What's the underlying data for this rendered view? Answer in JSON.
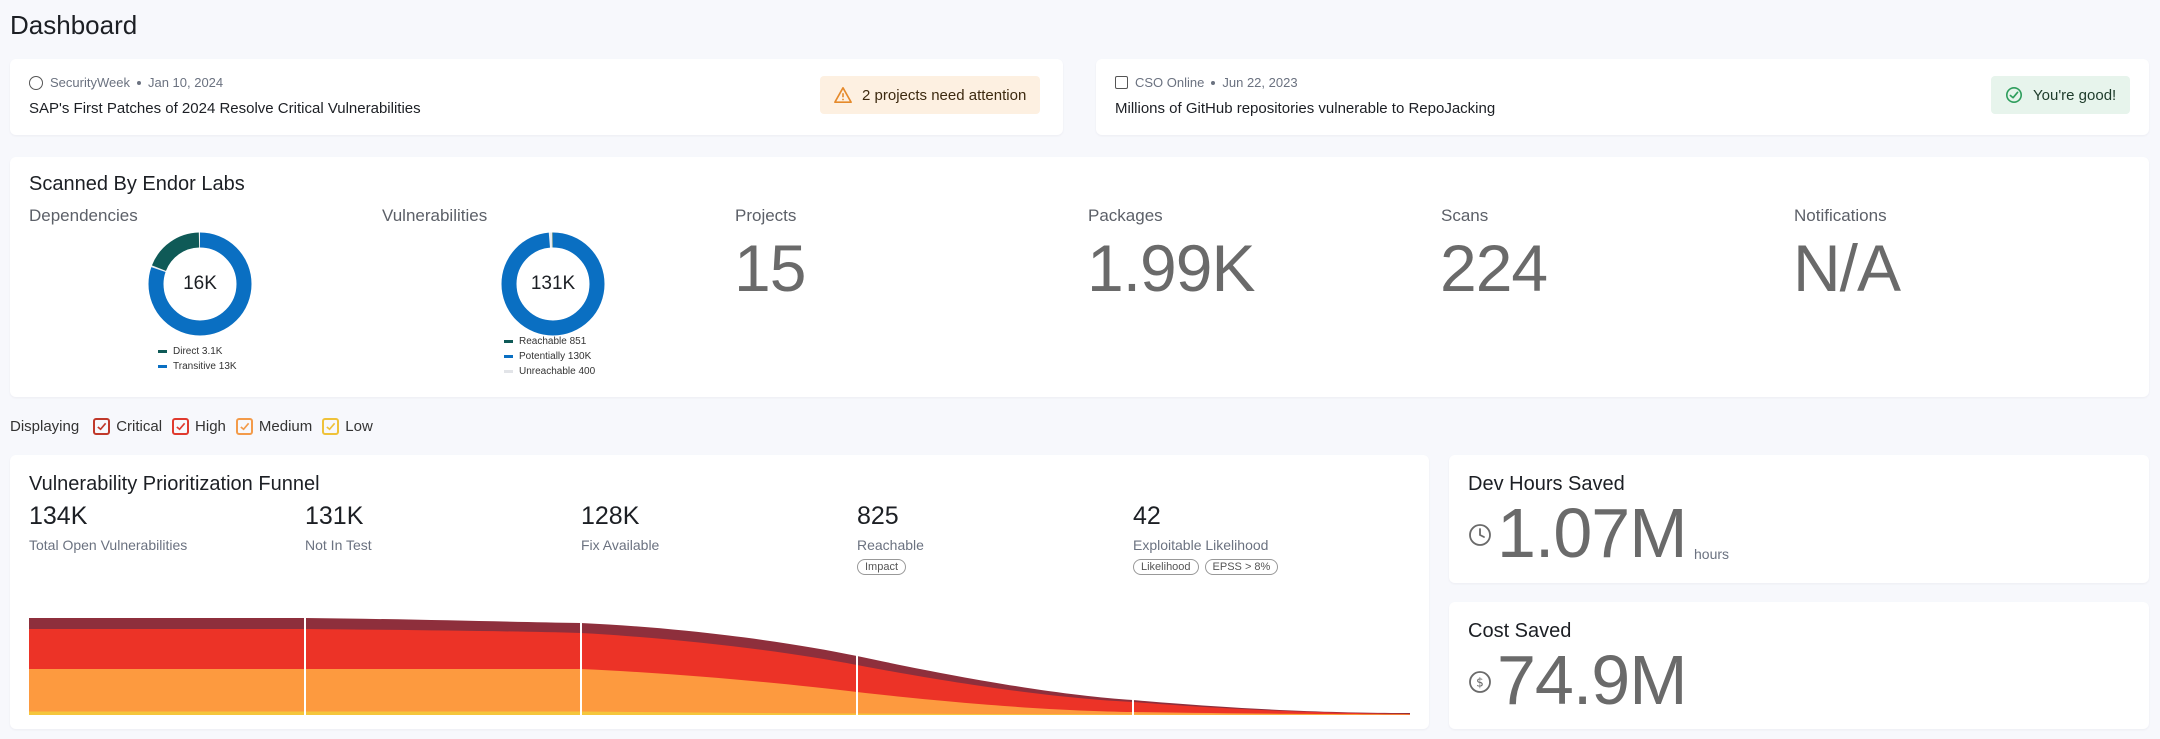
{
  "page": {
    "title": "Dashboard"
  },
  "news": [
    {
      "source": "SecurityWeek",
      "date": "Jan 10, 2024",
      "title": "SAP's First Patches of 2024 Resolve Critical Vulnerabilities",
      "badge": "2 projects need attention",
      "badge_icon": "warning-icon"
    },
    {
      "source": "CSO Online",
      "date": "Jun 22, 2023",
      "title": "Millions of GitHub repositories vulnerable to RepoJacking",
      "badge": "You're good!",
      "badge_icon": "check-circle-icon"
    }
  ],
  "scanned": {
    "title": "Scanned By Endor Labs",
    "dependencies": {
      "label": "Dependencies",
      "center": "16K",
      "legend": [
        {
          "label": "Direct 3.1K",
          "value": 3.1,
          "color": "#0f5a57"
        },
        {
          "label": "Transitive 13K",
          "value": 13,
          "color": "#0a6fc2"
        }
      ]
    },
    "vulnerabilities": {
      "label": "Vulnerabilities",
      "center": "131K",
      "legend": [
        {
          "label": "Reachable 851",
          "value": 851,
          "color": "#0f5a57"
        },
        {
          "label": "Potentially 130K",
          "value": 130000,
          "color": "#0a6fc2"
        },
        {
          "label": "Unreachable 400",
          "value": 400,
          "color": "#e2e4e8"
        }
      ]
    },
    "stats": [
      {
        "label": "Projects",
        "value": "15"
      },
      {
        "label": "Packages",
        "value": "1.99K"
      },
      {
        "label": "Scans",
        "value": "224"
      },
      {
        "label": "Notifications",
        "value": "N/A"
      }
    ]
  },
  "filters": {
    "label": "Displaying",
    "items": [
      {
        "label": "Critical",
        "color": "#c0392b",
        "checked": true
      },
      {
        "label": "High",
        "color": "#e03a2e",
        "checked": true
      },
      {
        "label": "Medium",
        "color": "#f39b4a",
        "checked": true
      },
      {
        "label": "Low",
        "color": "#efc23a",
        "checked": true
      }
    ]
  },
  "funnel": {
    "title": "Vulnerability Prioritization Funnel",
    "stages": [
      {
        "value": "134K",
        "label": "Total Open Vulnerabilities",
        "tags": []
      },
      {
        "value": "131K",
        "label": "Not In Test",
        "tags": []
      },
      {
        "value": "128K",
        "label": "Fix Available",
        "tags": []
      },
      {
        "value": "825",
        "label": "Reachable",
        "tags": [
          "Impact"
        ]
      },
      {
        "value": "42",
        "label": "Exploitable Likelihood",
        "tags": [
          "Likelihood",
          "EPSS > 8%"
        ]
      }
    ],
    "colors": {
      "critical": "#8e2f3c",
      "high": "#ec3327",
      "medium": "#fd9a3f",
      "low": "#f5c63c"
    }
  },
  "dev_hours": {
    "title": "Dev Hours Saved",
    "value": "1.07M",
    "unit": "hours",
    "icon": "clock-icon"
  },
  "cost": {
    "title": "Cost Saved",
    "value": "74.9M",
    "icon": "dollar-icon"
  }
}
